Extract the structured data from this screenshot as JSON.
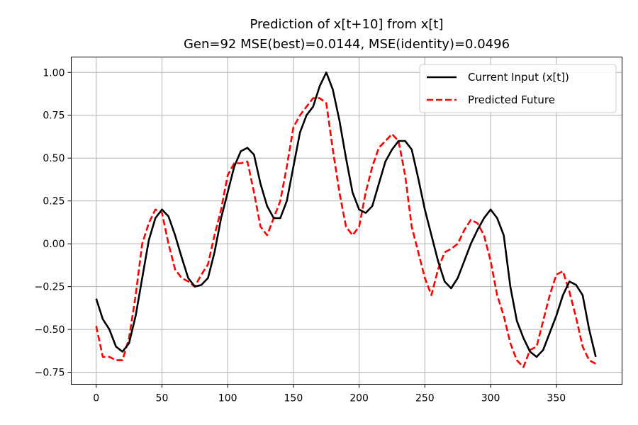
{
  "chart_data": {
    "type": "line",
    "title": "Prediction of x[t+10] from x[t]",
    "subtitle": "Gen=92 MSE(best)=0.0144, MSE(identity)=0.0496",
    "xlabel": "",
    "ylabel": "",
    "xlim": [
      -19,
      400
    ],
    "ylim": [
      -0.82,
      1.09
    ],
    "x_ticks": [
      0,
      50,
      100,
      150,
      200,
      250,
      300,
      350
    ],
    "y_ticks": [
      -0.75,
      -0.5,
      -0.25,
      0.0,
      0.25,
      0.5,
      0.75,
      1.0
    ],
    "y_tick_labels": [
      "−0.75",
      "−0.50",
      "−0.25",
      "0.00",
      "0.25",
      "0.50",
      "0.75",
      "1.00"
    ],
    "grid": true,
    "legend_position": "top-right",
    "x": [
      0,
      5,
      10,
      15,
      20,
      25,
      30,
      35,
      40,
      45,
      50,
      55,
      60,
      65,
      70,
      75,
      80,
      85,
      90,
      95,
      100,
      105,
      110,
      115,
      120,
      125,
      130,
      135,
      140,
      145,
      150,
      155,
      160,
      165,
      170,
      175,
      180,
      185,
      190,
      195,
      200,
      205,
      210,
      215,
      220,
      225,
      230,
      235,
      240,
      245,
      250,
      255,
      260,
      265,
      270,
      275,
      280,
      285,
      290,
      295,
      300,
      305,
      310,
      315,
      320,
      325,
      330,
      335,
      340,
      345,
      350,
      355,
      360,
      365,
      370,
      375,
      380
    ],
    "series": [
      {
        "name": "Current Input (x[t])",
        "color": "#000000",
        "style": "solid",
        "values": [
          -0.32,
          -0.44,
          -0.5,
          -0.6,
          -0.63,
          -0.58,
          -0.42,
          -0.2,
          0.02,
          0.15,
          0.2,
          0.16,
          0.05,
          -0.08,
          -0.2,
          -0.25,
          -0.24,
          -0.2,
          -0.05,
          0.15,
          0.3,
          0.45,
          0.54,
          0.56,
          0.52,
          0.35,
          0.22,
          0.15,
          0.15,
          0.25,
          0.45,
          0.65,
          0.75,
          0.8,
          0.92,
          1.0,
          0.9,
          0.72,
          0.5,
          0.3,
          0.2,
          0.18,
          0.22,
          0.35,
          0.48,
          0.55,
          0.6,
          0.6,
          0.55,
          0.38,
          0.2,
          0.05,
          -0.1,
          -0.22,
          -0.26,
          -0.2,
          -0.1,
          0.0,
          0.08,
          0.15,
          0.2,
          0.15,
          0.05,
          -0.25,
          -0.45,
          -0.55,
          -0.63,
          -0.66,
          -0.62,
          -0.52,
          -0.42,
          -0.3,
          -0.22,
          -0.24,
          -0.3,
          -0.5,
          -0.66
        ]
      },
      {
        "name": "Predicted Future",
        "color": "#ff0000",
        "style": "dashed",
        "values": [
          -0.48,
          -0.66,
          -0.66,
          -0.68,
          -0.68,
          -0.55,
          -0.3,
          0.0,
          0.12,
          0.2,
          0.18,
          0.0,
          -0.15,
          -0.2,
          -0.22,
          -0.25,
          -0.18,
          -0.12,
          0.05,
          0.2,
          0.4,
          0.47,
          0.47,
          0.48,
          0.3,
          0.1,
          0.05,
          0.15,
          0.25,
          0.45,
          0.68,
          0.75,
          0.8,
          0.85,
          0.85,
          0.82,
          0.55,
          0.3,
          0.1,
          0.05,
          0.1,
          0.3,
          0.45,
          0.56,
          0.6,
          0.64,
          0.6,
          0.4,
          0.1,
          -0.05,
          -0.2,
          -0.3,
          -0.15,
          -0.05,
          -0.03,
          0.0,
          0.08,
          0.14,
          0.12,
          0.05,
          -0.1,
          -0.3,
          -0.42,
          -0.58,
          -0.68,
          -0.72,
          -0.62,
          -0.6,
          -0.45,
          -0.3,
          -0.18,
          -0.16,
          -0.28,
          -0.43,
          -0.6,
          -0.68,
          -0.7
        ]
      }
    ]
  }
}
